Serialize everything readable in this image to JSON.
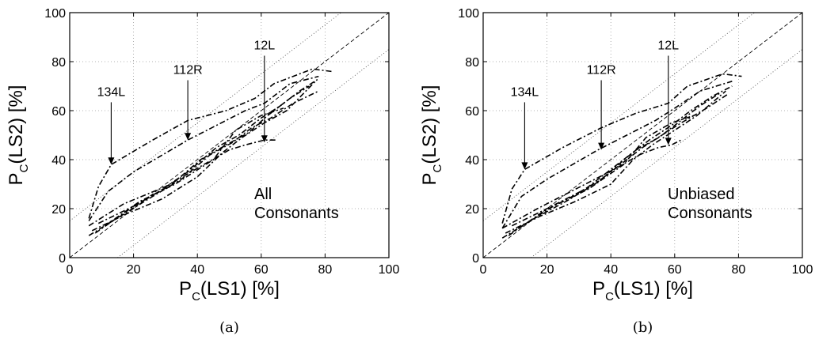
{
  "chart_data": [
    {
      "type": "line",
      "caption": "(a)",
      "xlabel": {
        "main": "P",
        "sub": "C",
        "rest": "(LS1) [%]"
      },
      "ylabel": {
        "main": "P",
        "sub": "C",
        "rest": "(LS2) [%]"
      },
      "xlim": [
        0,
        100
      ],
      "ylim": [
        0,
        100
      ],
      "xticks": [
        0,
        20,
        40,
        60,
        80,
        100
      ],
      "yticks": [
        0,
        20,
        40,
        60,
        80,
        100
      ],
      "grid": true,
      "inside_text": [
        "All",
        "Consonants"
      ],
      "reference_lines": [
        {
          "style": "dashed",
          "points": [
            [
              0,
              0
            ],
            [
              100,
              100
            ]
          ]
        },
        {
          "style": "dotted",
          "points": [
            [
              0,
              15
            ],
            [
              85,
              100
            ]
          ]
        },
        {
          "style": "dotted",
          "points": [
            [
              15,
              0
            ],
            [
              100,
              85
            ]
          ]
        }
      ],
      "annotations": [
        {
          "text": "134L",
          "tip": [
            13,
            38
          ]
        },
        {
          "text": "112R",
          "tip": [
            37,
            48
          ]
        },
        {
          "text": "12L",
          "tip": [
            61,
            47
          ]
        }
      ],
      "series": [
        {
          "points": [
            [
              6,
              16
            ],
            [
              9,
              29
            ],
            [
              13,
              38
            ],
            [
              26,
              48
            ],
            [
              37,
              56
            ],
            [
              49,
              60
            ],
            [
              58,
              65
            ],
            [
              64,
              71
            ],
            [
              76,
              77
            ],
            [
              82,
              76
            ]
          ]
        },
        {
          "points": [
            [
              6,
              15
            ],
            [
              12,
              27
            ],
            [
              20,
              35
            ],
            [
              37,
              48
            ],
            [
              46,
              54
            ],
            [
              55,
              60
            ],
            [
              61,
              63
            ],
            [
              69,
              71
            ],
            [
              78,
              74
            ]
          ]
        },
        {
          "points": [
            [
              6,
              13
            ],
            [
              17,
              22
            ],
            [
              30,
              29
            ],
            [
              42,
              38
            ],
            [
              50,
              44
            ],
            [
              55,
              46
            ],
            [
              61,
              48
            ],
            [
              65,
              48
            ]
          ]
        },
        {
          "points": [
            [
              7,
              11
            ],
            [
              18,
              18
            ],
            [
              29,
              24
            ],
            [
              40,
              33
            ],
            [
              48,
              43
            ],
            [
              54,
              49
            ],
            [
              61,
              55
            ],
            [
              68,
              60
            ],
            [
              77,
              72
            ]
          ]
        },
        {
          "points": [
            [
              8,
              10
            ],
            [
              19,
              20
            ],
            [
              28,
              27
            ],
            [
              37,
              35
            ],
            [
              46,
              45
            ],
            [
              53,
              50
            ],
            [
              60,
              57
            ],
            [
              66,
              62
            ],
            [
              72,
              68
            ],
            [
              78,
              73
            ]
          ]
        },
        {
          "points": [
            [
              9,
              14
            ],
            [
              20,
              21
            ],
            [
              32,
              30
            ],
            [
              41,
              40
            ],
            [
              49,
              46
            ],
            [
              56,
              51
            ],
            [
              62,
              58
            ],
            [
              69,
              65
            ],
            [
              75,
              70
            ]
          ]
        },
        {
          "points": [
            [
              6,
              9
            ],
            [
              16,
              17
            ],
            [
              26,
              25
            ],
            [
              35,
              32
            ],
            [
              44,
              42
            ],
            [
              51,
              47
            ],
            [
              57,
              53
            ],
            [
              63,
              57
            ],
            [
              70,
              63
            ],
            [
              78,
              68
            ]
          ]
        },
        {
          "points": [
            [
              11,
              13
            ],
            [
              22,
              23
            ],
            [
              33,
              30
            ],
            [
              45,
              40
            ],
            [
              52,
              52
            ],
            [
              60,
              58
            ],
            [
              67,
              61
            ]
          ]
        }
      ]
    },
    {
      "type": "line",
      "caption": "(b)",
      "xlabel": {
        "main": "P",
        "sub": "C",
        "rest": "(LS1) [%]"
      },
      "ylabel": {
        "main": "P",
        "sub": "C",
        "rest": "(LS2) [%]"
      },
      "xlim": [
        0,
        100
      ],
      "ylim": [
        0,
        100
      ],
      "xticks": [
        0,
        20,
        40,
        60,
        80,
        100
      ],
      "yticks": [
        0,
        20,
        40,
        60,
        80,
        100
      ],
      "grid": true,
      "inside_text": [
        "Unbiased",
        "Consonants"
      ],
      "reference_lines": [
        {
          "style": "dashed",
          "points": [
            [
              0,
              0
            ],
            [
              100,
              100
            ]
          ]
        },
        {
          "style": "dotted",
          "points": [
            [
              0,
              15
            ],
            [
              85,
              100
            ]
          ]
        },
        {
          "style": "dotted",
          "points": [
            [
              15,
              0
            ],
            [
              100,
              85
            ]
          ]
        }
      ],
      "annotations": [
        {
          "text": "134L",
          "tip": [
            13,
            36
          ]
        },
        {
          "text": "112R",
          "tip": [
            37,
            44
          ]
        },
        {
          "text": "12L",
          "tip": [
            58,
            46
          ]
        }
      ],
      "series": [
        {
          "points": [
            [
              6,
              14
            ],
            [
              9,
              28
            ],
            [
              13,
              36
            ],
            [
              25,
              45
            ],
            [
              37,
              53
            ],
            [
              48,
              59
            ],
            [
              58,
              63
            ],
            [
              64,
              70
            ],
            [
              75,
              75
            ],
            [
              81,
              74
            ]
          ]
        },
        {
          "points": [
            [
              6,
              12
            ],
            [
              12,
              25
            ],
            [
              20,
              32
            ],
            [
              36,
              44
            ],
            [
              45,
              50
            ],
            [
              54,
              56
            ],
            [
              60,
              61
            ],
            [
              68,
              68
            ],
            [
              78,
              72
            ]
          ]
        },
        {
          "points": [
            [
              6,
              12
            ],
            [
              17,
              20
            ],
            [
              29,
              28
            ],
            [
              41,
              36
            ],
            [
              49,
              42
            ],
            [
              55,
              45
            ],
            [
              59,
              46
            ],
            [
              62,
              48
            ]
          ]
        },
        {
          "points": [
            [
              7,
              10
            ],
            [
              18,
              17
            ],
            [
              29,
              23
            ],
            [
              40,
              30
            ],
            [
              47,
              40
            ],
            [
              53,
              46
            ],
            [
              60,
              52
            ],
            [
              67,
              58
            ],
            [
              76,
              68
            ]
          ]
        },
        {
          "points": [
            [
              8,
              9
            ],
            [
              19,
              19
            ],
            [
              28,
              25
            ],
            [
              37,
              32
            ],
            [
              46,
              42
            ],
            [
              52,
              48
            ],
            [
              59,
              54
            ],
            [
              65,
              60
            ],
            [
              72,
              66
            ],
            [
              78,
              70
            ]
          ]
        },
        {
          "points": [
            [
              9,
              13
            ],
            [
              20,
              20
            ],
            [
              32,
              28
            ],
            [
              41,
              37
            ],
            [
              48,
              44
            ],
            [
              55,
              49
            ],
            [
              62,
              56
            ],
            [
              68,
              62
            ],
            [
              74,
              67
            ]
          ]
        },
        {
          "points": [
            [
              6,
              8
            ],
            [
              16,
              16
            ],
            [
              26,
              23
            ],
            [
              35,
              30
            ],
            [
              44,
              39
            ],
            [
              50,
              45
            ],
            [
              56,
              50
            ],
            [
              62,
              55
            ],
            [
              70,
              61
            ],
            [
              77,
              67
            ]
          ]
        },
        {
          "points": [
            [
              11,
              12
            ],
            [
              22,
              21
            ],
            [
              33,
              28
            ],
            [
              44,
              38
            ],
            [
              51,
              49
            ],
            [
              59,
              55
            ],
            [
              66,
              58
            ]
          ]
        }
      ]
    }
  ]
}
